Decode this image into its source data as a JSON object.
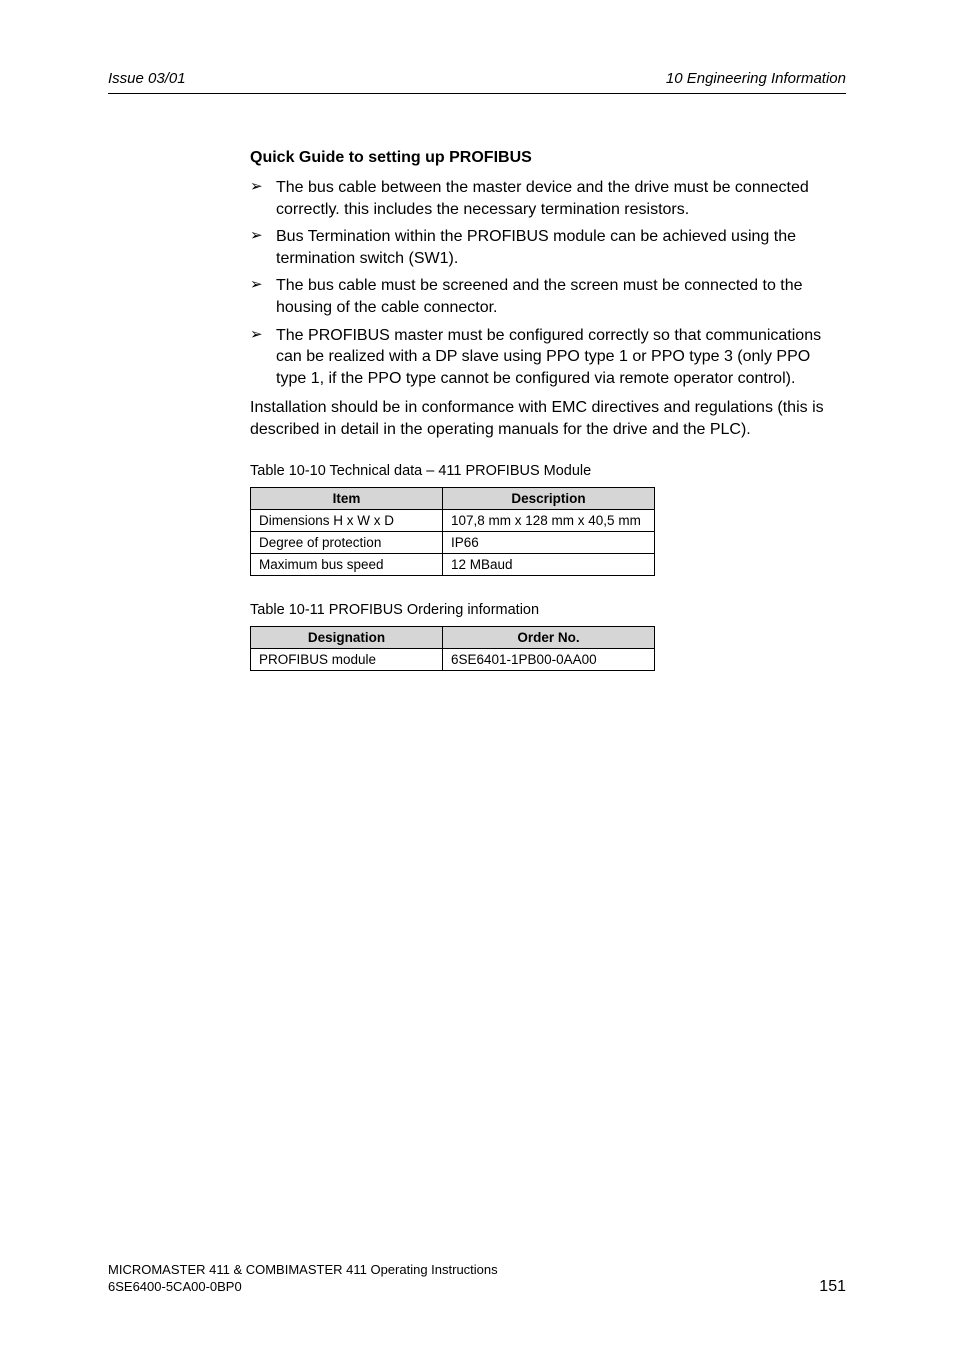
{
  "header": {
    "left": "Issue 03/01",
    "right": "10  Engineering Information"
  },
  "section_title": "Quick Guide to setting up PROFIBUS",
  "bullets": [
    "The bus cable between the master device and the drive must be connected correctly. this includes the necessary termination resistors.",
    "Bus Termination within the PROFIBUS module can be achieved using the termination switch (SW1).",
    "The bus cable must be screened and the screen must be connected to the housing of the cable connector.",
    "The PROFIBUS master must be configured correctly so that communications can be realized with a DP slave using PPO type 1 or PPO type 3 (only PPO type 1, if the PPO type cannot be configured via remote operator control)."
  ],
  "paragraph": "Installation should be in conformance with EMC directives and regulations (this is described in detail in the operating manuals for the drive and the PLC).",
  "table1": {
    "caption": "Table 10-10   Technical data – 411 PROFIBUS Module",
    "headers": [
      "Item",
      "Description"
    ],
    "rows": [
      [
        "Dimensions H x W x D",
        "107,8 mm x 128 mm x 40,5 mm"
      ],
      [
        "Degree of protection",
        "IP66"
      ],
      [
        "Maximum bus speed",
        "12 MBaud"
      ]
    ]
  },
  "table2": {
    "caption": "Table 10-11   PROFIBUS Ordering information",
    "headers": [
      "Designation",
      "Order No."
    ],
    "rows": [
      [
        "PROFIBUS module",
        "6SE6401-1PB00-0AA00"
      ]
    ]
  },
  "footer": {
    "line1": "MICROMASTER 411 & COMBIMASTER 411    Operating Instructions",
    "line2": "6SE6400-5CA00-0BP0",
    "page": "151"
  }
}
